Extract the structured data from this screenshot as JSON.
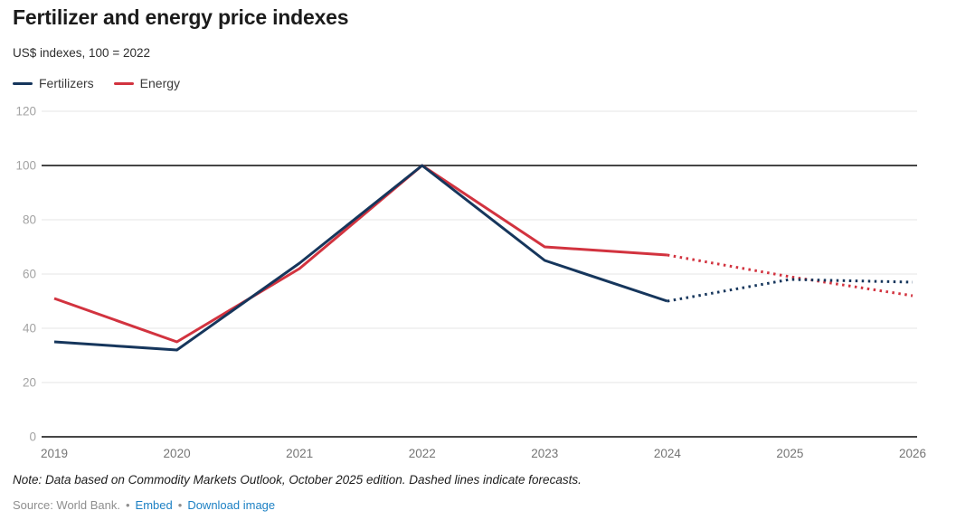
{
  "header": {
    "title": "Fertilizer and energy price indexes",
    "subtitle": "US$ indexes, 100 = 2022"
  },
  "legend": [
    {
      "label": "Fertilizers",
      "color": "#16365c"
    },
    {
      "label": "Energy",
      "color": "#d2333f"
    }
  ],
  "chart_data": {
    "type": "line",
    "x": [
      2019,
      2020,
      2021,
      2022,
      2023,
      2024,
      2025,
      2026
    ],
    "series": [
      {
        "name": "Fertilizers",
        "color": "#16365c",
        "values": [
          35,
          32,
          64,
          100,
          65,
          50,
          58,
          57
        ],
        "forecast_start_index": 5
      },
      {
        "name": "Energy",
        "color": "#d2333f",
        "values": [
          51,
          35,
          62,
          100,
          70,
          67,
          59,
          52
        ],
        "forecast_start_index": 5
      }
    ],
    "title": "Fertilizer and energy price indexes",
    "subtitle": "US$ indexes, 100 = 2022",
    "xlabel": "",
    "ylabel": "",
    "ylim": [
      0,
      120
    ],
    "yticks": [
      0,
      20,
      40,
      60,
      80,
      100,
      120
    ],
    "reference_line": 100,
    "grid": true,
    "legend_position": "top-left",
    "dashed_meaning": "forecast",
    "colors": {
      "grid_light": "#e6e6e6",
      "grid_dark": "#2b2b2b",
      "ytick_label": "#a3a3a3",
      "xtick_label": "#757575"
    }
  },
  "footer": {
    "note": "Note: Data based on Commodity Markets Outlook, October 2025 edition. Dashed lines indicate forecasts.",
    "source": "Source: World Bank.",
    "bullet": "•",
    "links": [
      {
        "label": "Embed"
      },
      {
        "label": "Download image"
      }
    ],
    "link_color": "#1d81c4"
  }
}
